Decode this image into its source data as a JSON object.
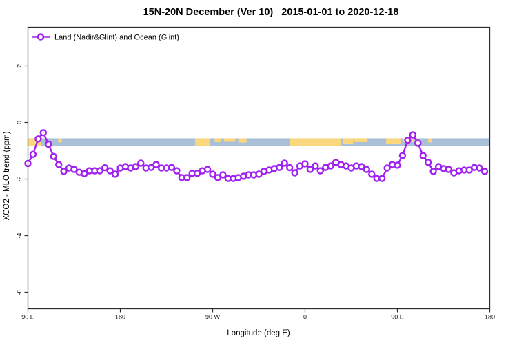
{
  "window": {
    "title": "15N-20N December (Ver 10)   2015-01-01 to 2020-12-18"
  },
  "colors": {
    "series_purple": "#A020F0",
    "ocean_band_blue": "#AABFD8",
    "land_patch_orange": "#FAD77C",
    "frame": "#2e2e2e",
    "marker_fill": "#ffffff"
  },
  "chart_data": {
    "type": "line",
    "title": "15N-20N December (Ver 10)   2015-01-01 to 2020-12-18",
    "xlabel": "Longitude (deg E)",
    "ylabel": "XCO2 - MLO trend (ppm)",
    "legend_position": "top-left",
    "legend_entries": [
      {
        "label": "Land (Nadir&Glint) and Ocean (Glint)",
        "marker": "open-circle-line",
        "color": "#A020F0"
      }
    ],
    "x_range_deg": [
      90,
      540
    ],
    "ylim_approx": [
      -6.6,
      3.4
    ],
    "grid": false,
    "x_ticks": [
      {
        "value": 90,
        "label": "90 E"
      },
      {
        "value": 180,
        "label": "180"
      },
      {
        "value": 270,
        "label": "90 W"
      },
      {
        "value": 360,
        "label": "0"
      },
      {
        "value": 450,
        "label": "90 E"
      },
      {
        "value": 540,
        "label": "180"
      }
    ],
    "y_ticks": [
      {
        "value": 2,
        "label": "2"
      },
      {
        "value": 0,
        "label": "0"
      },
      {
        "value": -2,
        "label": "-2"
      },
      {
        "value": -4,
        "label": "-4"
      },
      {
        "value": -6,
        "label": "-6"
      }
    ],
    "land_ocean_band": {
      "meaning": "map strip of 15N-20N latitude band: blue=ocean, orange=land",
      "y_top_value": -0.56,
      "y_bottom_value": -0.83,
      "land_patches_deg": [
        {
          "from": 90,
          "to": 103,
          "frac": 1.0
        },
        {
          "from": 119.5,
          "to": 123,
          "frac": 0.55
        },
        {
          "from": 253,
          "to": 267,
          "frac": 1.0
        },
        {
          "from": 272,
          "to": 278,
          "frac": 0.5
        },
        {
          "from": 281,
          "to": 292,
          "frac": 0.45
        },
        {
          "from": 295,
          "to": 303,
          "frac": 0.55
        },
        {
          "from": 345,
          "to": 395,
          "frac": 1.0
        },
        {
          "from": 397,
          "to": 407,
          "frac": 0.75
        },
        {
          "from": 408,
          "to": 421,
          "frac": 0.5
        },
        {
          "from": 439,
          "to": 453,
          "frac": 0.7
        },
        {
          "from": 455,
          "to": 466,
          "frac": 0.5
        },
        {
          "from": 480,
          "to": 483.5,
          "frac": 0.55
        }
      ]
    },
    "series": [
      {
        "name": "Land (Nadir&Glint) and Ocean (Glint)",
        "x_deg": [
          90,
          95,
          100,
          105,
          110,
          115,
          120,
          125,
          130,
          135,
          140,
          145,
          150,
          155,
          160,
          165,
          170,
          175,
          180,
          185,
          190,
          195,
          200,
          205,
          210,
          215,
          220,
          225,
          230,
          235,
          240,
          245,
          250,
          255,
          260,
          265,
          270,
          275,
          280,
          285,
          290,
          295,
          300,
          305,
          310,
          315,
          320,
          325,
          330,
          335,
          340,
          345,
          350,
          355,
          360,
          365,
          370,
          375,
          380,
          385,
          390,
          395,
          400,
          405,
          410,
          415,
          420,
          425,
          430,
          435,
          440,
          445,
          450,
          455,
          460,
          465,
          470,
          475,
          480,
          485,
          490,
          495,
          500,
          505,
          510,
          515,
          520,
          525,
          530,
          535
        ],
        "y_ppm": [
          -1.45,
          -1.13,
          -0.58,
          -0.36,
          -0.77,
          -1.2,
          -1.49,
          -1.73,
          -1.61,
          -1.66,
          -1.76,
          -1.81,
          -1.71,
          -1.71,
          -1.71,
          -1.6,
          -1.71,
          -1.83,
          -1.61,
          -1.56,
          -1.61,
          -1.56,
          -1.44,
          -1.61,
          -1.59,
          -1.49,
          -1.61,
          -1.61,
          -1.59,
          -1.71,
          -1.95,
          -1.95,
          -1.8,
          -1.8,
          -1.71,
          -1.66,
          -1.83,
          -1.95,
          -1.85,
          -1.98,
          -1.98,
          -1.95,
          -1.9,
          -1.85,
          -1.85,
          -1.83,
          -1.73,
          -1.68,
          -1.63,
          -1.59,
          -1.44,
          -1.6,
          -1.78,
          -1.54,
          -1.46,
          -1.66,
          -1.54,
          -1.71,
          -1.59,
          -1.54,
          -1.41,
          -1.49,
          -1.54,
          -1.61,
          -1.54,
          -1.56,
          -1.66,
          -1.83,
          -1.98,
          -1.98,
          -1.61,
          -1.49,
          -1.51,
          -1.17,
          -0.63,
          -0.44,
          -0.73,
          -1.17,
          -1.41,
          -1.73,
          -1.56,
          -1.63,
          -1.66,
          -1.78,
          -1.71,
          -1.68,
          -1.68,
          -1.59,
          -1.61,
          -1.73
        ]
      }
    ]
  }
}
